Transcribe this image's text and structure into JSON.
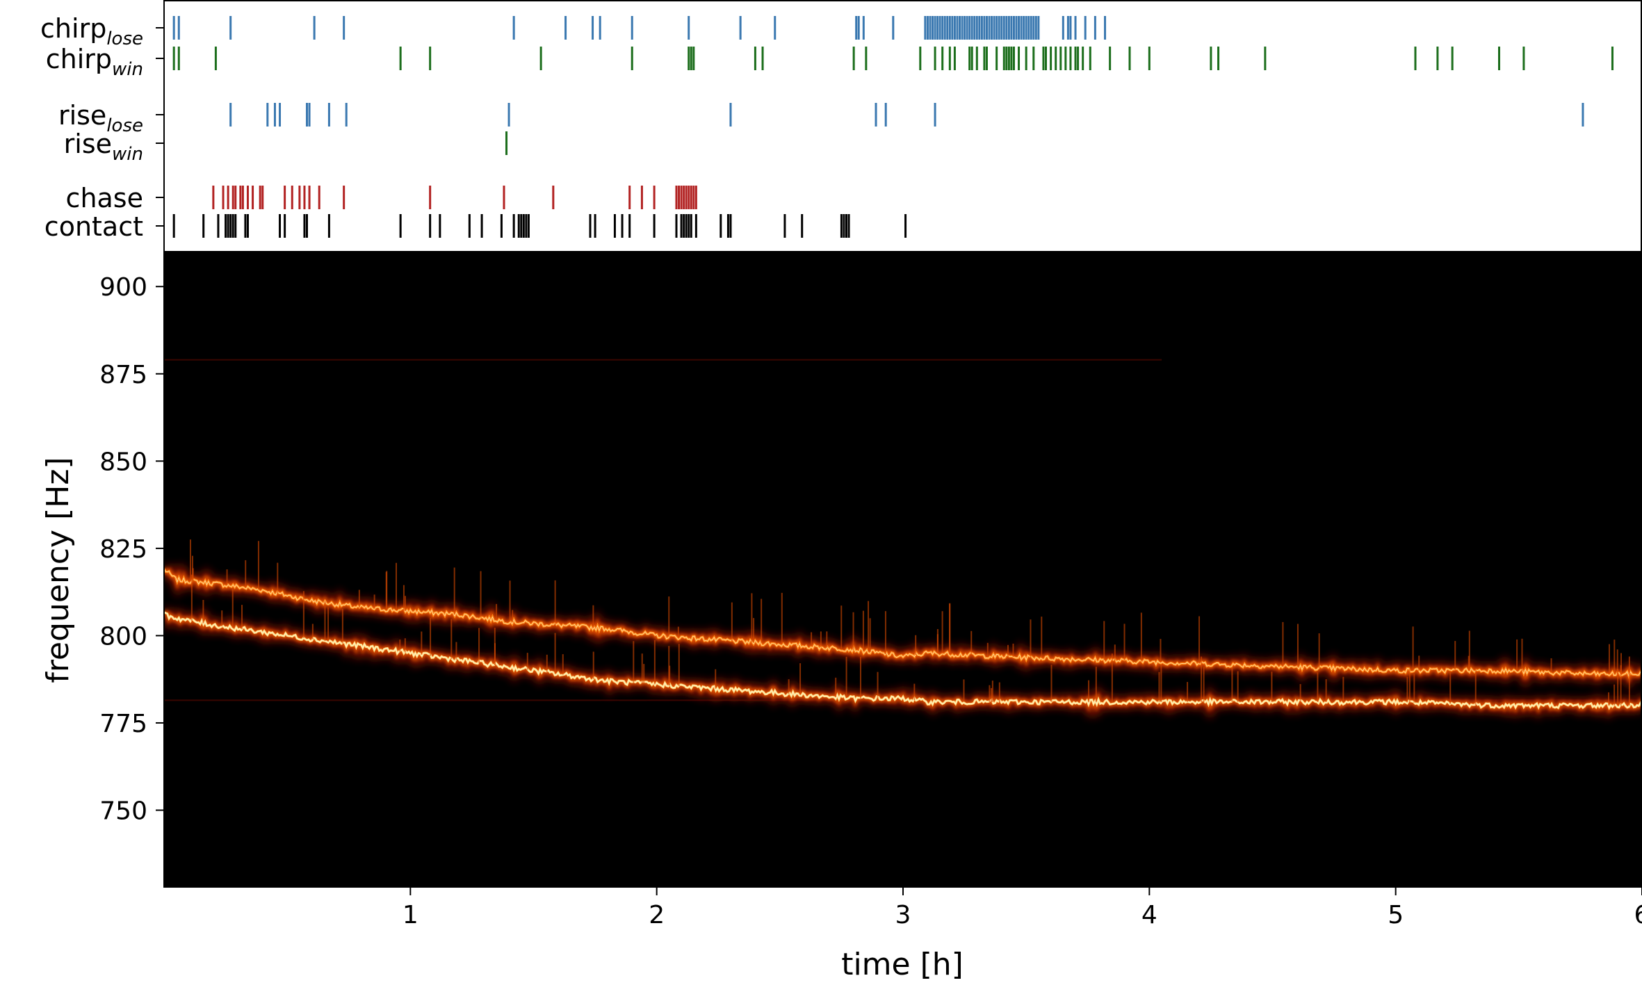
{
  "chart_data": [
    {
      "type": "event_raster",
      "rows": [
        {
          "key": "chirp_lose",
          "label": "chirp",
          "sub": "lose",
          "color": "#3a78b0",
          "events": [
            0.04,
            0.06,
            0.27,
            0.61,
            0.73,
            1.42,
            1.63,
            1.74,
            1.77,
            1.9,
            2.13,
            2.34,
            2.48,
            2.81,
            2.82,
            2.84,
            2.96,
            3.09,
            3.1,
            3.11,
            3.12,
            3.13,
            3.14,
            3.15,
            3.16,
            3.17,
            3.18,
            3.19,
            3.2,
            3.21,
            3.22,
            3.23,
            3.24,
            3.25,
            3.26,
            3.27,
            3.28,
            3.29,
            3.3,
            3.31,
            3.32,
            3.33,
            3.34,
            3.35,
            3.36,
            3.37,
            3.38,
            3.39,
            3.4,
            3.41,
            3.42,
            3.43,
            3.44,
            3.45,
            3.46,
            3.47,
            3.48,
            3.49,
            3.5,
            3.51,
            3.52,
            3.53,
            3.54,
            3.55,
            3.65,
            3.67,
            3.68,
            3.7,
            3.74,
            3.78,
            3.82
          ]
        },
        {
          "key": "chirp_win",
          "label": "chirp",
          "sub": "win",
          "color": "#1c6e1c",
          "events": [
            0.04,
            0.06,
            0.21,
            0.96,
            1.08,
            1.53,
            1.9,
            2.13,
            2.14,
            2.15,
            2.4,
            2.43,
            2.8,
            2.85,
            3.07,
            3.13,
            3.16,
            3.19,
            3.21,
            3.27,
            3.28,
            3.3,
            3.33,
            3.34,
            3.38,
            3.41,
            3.42,
            3.43,
            3.44,
            3.45,
            3.47,
            3.5,
            3.53,
            3.57,
            3.58,
            3.6,
            3.62,
            3.64,
            3.66,
            3.68,
            3.7,
            3.71,
            3.73,
            3.76,
            3.84,
            3.92,
            4.0,
            4.25,
            4.28,
            4.47,
            5.08,
            5.17,
            5.23,
            5.42,
            5.52,
            5.88
          ]
        },
        {
          "key": "rise_lose",
          "label": "rise",
          "sub": "lose",
          "color": "#3a78b0",
          "events": [
            0.27,
            0.42,
            0.45,
            0.47,
            0.58,
            0.59,
            0.67,
            0.74,
            1.4,
            2.3,
            2.89,
            2.93,
            3.13,
            5.76
          ]
        },
        {
          "key": "rise_win",
          "label": "rise",
          "sub": "win",
          "color": "#1c6e1c",
          "events": [
            1.39
          ]
        },
        {
          "key": "chase",
          "label": "chase",
          "sub": "",
          "color": "#b22222",
          "events": [
            0.2,
            0.24,
            0.26,
            0.28,
            0.29,
            0.31,
            0.32,
            0.34,
            0.36,
            0.39,
            0.4,
            0.49,
            0.52,
            0.55,
            0.57,
            0.59,
            0.63,
            0.73,
            1.08,
            1.38,
            1.58,
            1.89,
            1.94,
            1.99,
            2.08,
            2.09,
            2.1,
            2.11,
            2.12,
            2.13,
            2.14,
            2.15,
            2.16
          ]
        },
        {
          "key": "contact",
          "label": "contact",
          "sub": "",
          "color": "#000000",
          "events": [
            0.04,
            0.16,
            0.22,
            0.25,
            0.26,
            0.27,
            0.28,
            0.29,
            0.33,
            0.34,
            0.47,
            0.49,
            0.57,
            0.58,
            0.67,
            0.96,
            1.08,
            1.12,
            1.24,
            1.29,
            1.37,
            1.42,
            1.44,
            1.45,
            1.46,
            1.47,
            1.48,
            1.73,
            1.75,
            1.83,
            1.86,
            1.89,
            1.99,
            2.08,
            2.1,
            2.11,
            2.12,
            2.13,
            2.14,
            2.16,
            2.26,
            2.29,
            2.3,
            2.52,
            2.59,
            2.75,
            2.76,
            2.77,
            2.78,
            3.01
          ]
        }
      ],
      "xlim": [
        0,
        6
      ]
    },
    {
      "type": "heatmap",
      "xlabel": "time [h]",
      "ylabel": "frequency [Hz]",
      "xlim": [
        0,
        6
      ],
      "ylim": [
        728,
        910
      ],
      "xticks": [
        1,
        2,
        3,
        4,
        5,
        6
      ],
      "yticks": [
        750,
        775,
        800,
        825,
        850,
        875,
        900
      ],
      "background": "#000000",
      "colormap": [
        "#3a0500",
        "#8a1600",
        "#d84a00",
        "#ff8c1a",
        "#ffd070",
        "#ffffe0"
      ],
      "series": [
        {
          "x": [
            0,
            0.05,
            0.2,
            0.4,
            0.6,
            0.8,
            1.0,
            1.2,
            1.4,
            1.6,
            1.8,
            2.0,
            2.2,
            2.4,
            2.6,
            2.8,
            3.0,
            3.1,
            3.4,
            3.8,
            4.2,
            4.6,
            5.0,
            5.4,
            5.8,
            6.0
          ],
          "y": [
            819,
            816,
            815,
            813,
            810,
            808,
            807,
            806,
            804,
            803,
            802,
            800,
            799,
            798,
            797,
            796,
            794,
            795,
            794,
            793,
            792,
            791,
            790,
            790,
            789,
            789
          ]
        },
        {
          "x": [
            0,
            0.05,
            0.2,
            0.4,
            0.6,
            0.8,
            1.0,
            1.2,
            1.4,
            1.6,
            1.8,
            2.0,
            2.2,
            2.4,
            2.6,
            2.8,
            3.0,
            3.1,
            3.4,
            3.8,
            4.2,
            4.6,
            5.0,
            5.4,
            5.8,
            6.0
          ],
          "y": [
            806,
            805,
            803,
            801,
            799,
            797,
            795,
            793,
            791,
            789,
            787,
            786,
            785,
            784,
            783,
            782,
            782,
            781,
            781,
            781,
            781,
            781,
            781,
            780,
            780,
            780
          ]
        }
      ]
    }
  ]
}
